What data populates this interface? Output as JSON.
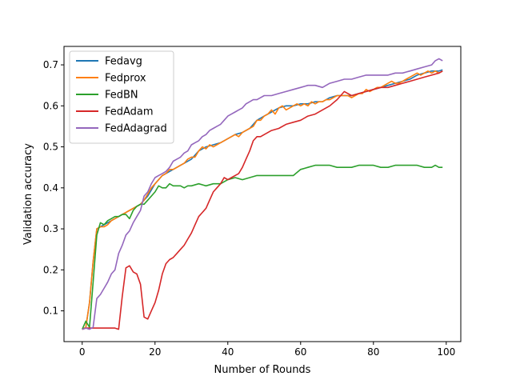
{
  "chart_data": {
    "type": "line",
    "title": "",
    "xlabel": "Number of Rounds",
    "ylabel": "Validation accuracy",
    "xlim": [
      -5,
      104
    ],
    "ylim": [
      0.025,
      0.745
    ],
    "xticks": [
      0,
      20,
      40,
      60,
      80,
      100
    ],
    "yticks": [
      0.1,
      0.2,
      0.3,
      0.4,
      0.5,
      0.6,
      0.7
    ],
    "grid": false,
    "legend_position": "top-left",
    "series": [
      {
        "name": "Fedavg",
        "color": "#1f77b4",
        "x": [
          0,
          1,
          2,
          3,
          4,
          5,
          6,
          7,
          8,
          9,
          10,
          12,
          14,
          16,
          18,
          20,
          22,
          24,
          26,
          28,
          30,
          32,
          34,
          36,
          38,
          40,
          42,
          44,
          46,
          48,
          50,
          52,
          54,
          56,
          58,
          60,
          62,
          64,
          66,
          68,
          70,
          72,
          74,
          76,
          78,
          80,
          82,
          84,
          86,
          88,
          90,
          92,
          94,
          96,
          98,
          99
        ],
        "y": [
          0.055,
          0.06,
          0.12,
          0.22,
          0.3,
          0.305,
          0.31,
          0.315,
          0.32,
          0.325,
          0.33,
          0.34,
          0.35,
          0.36,
          0.38,
          0.41,
          0.43,
          0.44,
          0.45,
          0.46,
          0.47,
          0.49,
          0.5,
          0.505,
          0.51,
          0.52,
          0.53,
          0.535,
          0.545,
          0.565,
          0.575,
          0.585,
          0.595,
          0.6,
          0.6,
          0.605,
          0.605,
          0.61,
          0.61,
          0.62,
          0.625,
          0.625,
          0.625,
          0.63,
          0.635,
          0.64,
          0.645,
          0.65,
          0.655,
          0.66,
          0.665,
          0.675,
          0.68,
          0.685,
          0.685,
          0.688
        ]
      },
      {
        "name": "Fedprox",
        "color": "#ff7f0e",
        "x": [
          0,
          1,
          2,
          3,
          4,
          5,
          6,
          7,
          8,
          9,
          10,
          11,
          12,
          13,
          14,
          15,
          16,
          17,
          18,
          19,
          20,
          21,
          22,
          23,
          24,
          25,
          26,
          27,
          28,
          29,
          30,
          31,
          32,
          33,
          34,
          35,
          36,
          37,
          38,
          39,
          40,
          41,
          42,
          43,
          44,
          45,
          46,
          47,
          48,
          49,
          50,
          51,
          52,
          53,
          54,
          55,
          56,
          57,
          58,
          59,
          60,
          61,
          62,
          63,
          64,
          65,
          66,
          67,
          68,
          69,
          70,
          71,
          72,
          73,
          74,
          75,
          76,
          77,
          78,
          79,
          80,
          81,
          82,
          83,
          84,
          85,
          86,
          87,
          88,
          89,
          90,
          91,
          92,
          93,
          94,
          95,
          96,
          97,
          98,
          99
        ],
        "y": [
          0.055,
          0.06,
          0.12,
          0.22,
          0.3,
          0.305,
          0.305,
          0.31,
          0.32,
          0.325,
          0.33,
          0.335,
          0.34,
          0.345,
          0.35,
          0.355,
          0.36,
          0.37,
          0.385,
          0.4,
          0.41,
          0.42,
          0.43,
          0.435,
          0.445,
          0.445,
          0.45,
          0.455,
          0.46,
          0.47,
          0.475,
          0.475,
          0.49,
          0.5,
          0.495,
          0.505,
          0.5,
          0.505,
          0.51,
          0.515,
          0.52,
          0.525,
          0.53,
          0.525,
          0.535,
          0.54,
          0.545,
          0.55,
          0.565,
          0.565,
          0.575,
          0.58,
          0.59,
          0.58,
          0.595,
          0.6,
          0.59,
          0.595,
          0.6,
          0.605,
          0.6,
          0.605,
          0.6,
          0.61,
          0.605,
          0.61,
          0.61,
          0.615,
          0.615,
          0.62,
          0.625,
          0.625,
          0.625,
          0.625,
          0.62,
          0.625,
          0.63,
          0.63,
          0.64,
          0.635,
          0.64,
          0.645,
          0.645,
          0.65,
          0.655,
          0.66,
          0.655,
          0.655,
          0.66,
          0.665,
          0.67,
          0.675,
          0.68,
          0.675,
          0.68,
          0.685,
          0.68,
          0.685,
          0.68,
          0.685
        ]
      },
      {
        "name": "FedBN",
        "color": "#2ca02c",
        "x": [
          0,
          1,
          2,
          3,
          4,
          5,
          6,
          7,
          8,
          9,
          10,
          11,
          12,
          13,
          14,
          15,
          16,
          17,
          18,
          19,
          20,
          21,
          22,
          23,
          24,
          25,
          26,
          27,
          28,
          29,
          30,
          32,
          34,
          36,
          38,
          40,
          42,
          44,
          46,
          48,
          50,
          52,
          54,
          56,
          58,
          60,
          62,
          64,
          66,
          68,
          70,
          72,
          74,
          76,
          78,
          80,
          82,
          84,
          86,
          88,
          90,
          92,
          94,
          96,
          97,
          98,
          99
        ],
        "y": [
          0.055,
          0.075,
          0.06,
          0.17,
          0.285,
          0.315,
          0.31,
          0.32,
          0.325,
          0.33,
          0.33,
          0.335,
          0.335,
          0.325,
          0.345,
          0.355,
          0.36,
          0.36,
          0.37,
          0.38,
          0.39,
          0.405,
          0.4,
          0.4,
          0.41,
          0.405,
          0.405,
          0.405,
          0.4,
          0.405,
          0.405,
          0.41,
          0.405,
          0.41,
          0.41,
          0.42,
          0.425,
          0.42,
          0.425,
          0.43,
          0.43,
          0.43,
          0.43,
          0.43,
          0.43,
          0.445,
          0.45,
          0.455,
          0.455,
          0.455,
          0.45,
          0.45,
          0.45,
          0.455,
          0.455,
          0.455,
          0.45,
          0.45,
          0.455,
          0.455,
          0.455,
          0.455,
          0.45,
          0.45,
          0.455,
          0.45,
          0.45
        ]
      },
      {
        "name": "FedAdam",
        "color": "#d62728",
        "x": [
          0,
          1,
          2,
          3,
          4,
          5,
          6,
          7,
          8,
          9,
          10,
          11,
          12,
          13,
          14,
          15,
          16,
          17,
          18,
          19,
          20,
          21,
          22,
          23,
          24,
          25,
          26,
          27,
          28,
          29,
          30,
          31,
          32,
          33,
          34,
          35,
          36,
          37,
          38,
          39,
          40,
          41,
          42,
          43,
          44,
          45,
          46,
          47,
          48,
          49,
          50,
          52,
          54,
          56,
          58,
          60,
          62,
          64,
          66,
          68,
          70,
          72,
          74,
          76,
          78,
          80,
          82,
          84,
          86,
          88,
          90,
          92,
          94,
          96,
          98,
          99
        ],
        "y": [
          0.055,
          0.058,
          0.058,
          0.058,
          0.058,
          0.058,
          0.058,
          0.058,
          0.058,
          0.058,
          0.055,
          0.135,
          0.205,
          0.21,
          0.195,
          0.19,
          0.165,
          0.085,
          0.08,
          0.1,
          0.12,
          0.15,
          0.19,
          0.215,
          0.225,
          0.23,
          0.24,
          0.25,
          0.26,
          0.275,
          0.29,
          0.31,
          0.33,
          0.34,
          0.35,
          0.37,
          0.39,
          0.4,
          0.41,
          0.425,
          0.42,
          0.425,
          0.43,
          0.435,
          0.45,
          0.47,
          0.49,
          0.515,
          0.525,
          0.525,
          0.53,
          0.54,
          0.545,
          0.555,
          0.56,
          0.565,
          0.575,
          0.58,
          0.59,
          0.6,
          0.615,
          0.635,
          0.625,
          0.63,
          0.635,
          0.64,
          0.645,
          0.645,
          0.65,
          0.655,
          0.66,
          0.665,
          0.67,
          0.675,
          0.68,
          0.685
        ]
      },
      {
        "name": "FedAdagrad",
        "color": "#9467bd",
        "x": [
          0,
          1,
          2,
          3,
          4,
          5,
          6,
          7,
          8,
          9,
          10,
          11,
          12,
          13,
          14,
          15,
          16,
          17,
          18,
          19,
          20,
          21,
          22,
          23,
          24,
          25,
          26,
          27,
          28,
          29,
          30,
          31,
          32,
          33,
          34,
          35,
          36,
          37,
          38,
          39,
          40,
          41,
          42,
          43,
          44,
          45,
          46,
          47,
          48,
          49,
          50,
          52,
          54,
          56,
          58,
          60,
          62,
          64,
          66,
          68,
          70,
          72,
          74,
          76,
          78,
          80,
          82,
          84,
          86,
          88,
          90,
          92,
          94,
          96,
          97,
          98,
          99
        ],
        "y": [
          0.055,
          0.058,
          0.055,
          0.06,
          0.13,
          0.14,
          0.155,
          0.17,
          0.19,
          0.2,
          0.24,
          0.26,
          0.285,
          0.295,
          0.315,
          0.33,
          0.345,
          0.38,
          0.39,
          0.41,
          0.425,
          0.43,
          0.435,
          0.44,
          0.45,
          0.465,
          0.47,
          0.475,
          0.485,
          0.49,
          0.505,
          0.51,
          0.515,
          0.525,
          0.53,
          0.54,
          0.545,
          0.55,
          0.555,
          0.565,
          0.575,
          0.58,
          0.585,
          0.59,
          0.595,
          0.605,
          0.61,
          0.615,
          0.615,
          0.62,
          0.625,
          0.625,
          0.63,
          0.635,
          0.64,
          0.645,
          0.65,
          0.65,
          0.645,
          0.655,
          0.66,
          0.665,
          0.665,
          0.67,
          0.675,
          0.675,
          0.675,
          0.675,
          0.68,
          0.68,
          0.685,
          0.69,
          0.695,
          0.7,
          0.71,
          0.715,
          0.71
        ]
      }
    ]
  }
}
